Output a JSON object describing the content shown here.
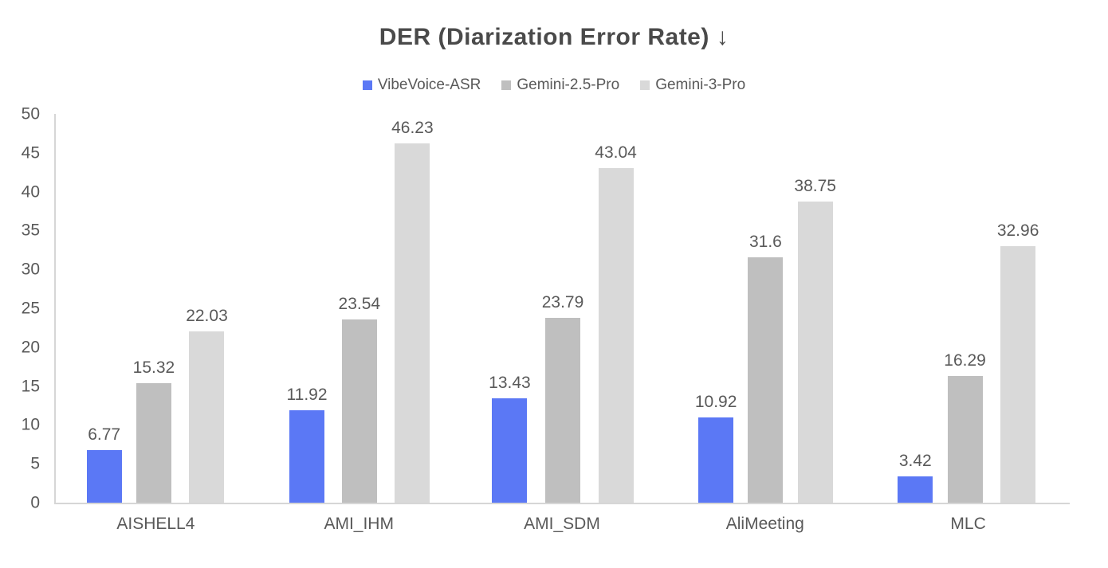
{
  "chart_data": {
    "type": "bar",
    "title": "DER (Diarization Error Rate) ↓",
    "categories": [
      "AISHELL4",
      "AMI_IHM",
      "AMI_SDM",
      "AliMeeting",
      "MLC"
    ],
    "series": [
      {
        "name": "VibeVoice-ASR",
        "color": "#5b78f5",
        "values": [
          6.77,
          11.92,
          13.43,
          10.92,
          3.42
        ]
      },
      {
        "name": "Gemini-2.5-Pro",
        "color": "#bfbfbf",
        "values": [
          15.32,
          23.54,
          23.79,
          31.6,
          16.29
        ]
      },
      {
        "name": "Gemini-3-Pro",
        "color": "#d9d9d9",
        "values": [
          22.03,
          46.23,
          43.04,
          38.75,
          32.96
        ]
      }
    ],
    "ylim": [
      0,
      50
    ],
    "ytick_step": 5,
    "grid": false,
    "legend_position": "top",
    "text_color": "#595959",
    "axis_color": "#d6d6d6"
  }
}
